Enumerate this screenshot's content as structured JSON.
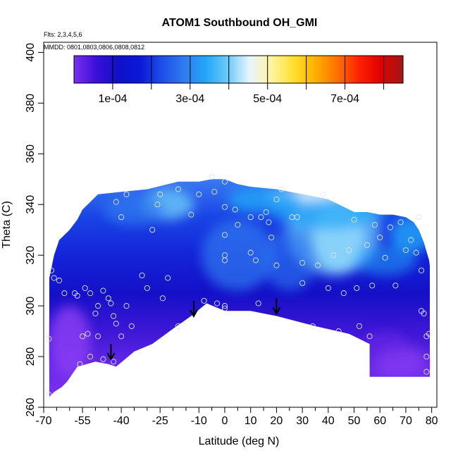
{
  "chart_data": {
    "type": "heatmap",
    "title": "ATOM1 Southbound OH_GMI",
    "note_flights": "Flts: 2,3,4,5,6",
    "note_dates": "MMDD: 0801,0803,0806,0808,0812",
    "xlabel": "Latitude (deg N)",
    "ylabel": "Theta (C)",
    "xlim": [
      -70,
      82
    ],
    "ylim": [
      260,
      404
    ],
    "x_ticks": [
      -70,
      -55,
      -40,
      -25,
      -10,
      0,
      10,
      20,
      30,
      40,
      50,
      60,
      70,
      80
    ],
    "x_minor_ticks": [
      -65,
      -60,
      -50,
      -45,
      -35,
      -30,
      -20,
      -15,
      -5,
      5,
      15,
      25,
      35,
      45,
      55,
      65,
      75
    ],
    "y_ticks": [
      260,
      280,
      300,
      320,
      340,
      360,
      380,
      400
    ],
    "colorbar": {
      "min": 0,
      "max": 0.00085,
      "tick_values": [
        0.0001,
        0.0003,
        0.0005,
        0.0007
      ],
      "tick_labels": [
        "1e-04",
        "3e-04",
        "5e-04",
        "7e-04"
      ],
      "boundaries": [
        0.0001,
        0.0002,
        0.0003,
        0.0004,
        0.0005,
        0.0006,
        0.0007,
        0.0008
      ],
      "colors": [
        "#7b2ff0",
        "#3a10d8",
        "#1010c8",
        "#0a18d8",
        "#1e4ee8",
        "#2f7af0",
        "#22a6f8",
        "#6ccaf8",
        "#e8f4ff",
        "#fff4a0",
        "#ffe030",
        "#ffb000",
        "#ff7000",
        "#ff2000",
        "#e00000",
        "#a01818"
      ]
    },
    "boundary": {
      "top": [
        [
          -68,
          310
        ],
        [
          -66,
          320
        ],
        [
          -64,
          326
        ],
        [
          -60,
          330
        ],
        [
          -57,
          334
        ],
        [
          -55,
          338
        ],
        [
          -52,
          341
        ],
        [
          -49,
          344
        ],
        [
          -40,
          345
        ],
        [
          -30,
          346
        ],
        [
          -22,
          348
        ],
        [
          -18,
          349
        ],
        [
          -10,
          349
        ],
        [
          -5,
          350
        ],
        [
          0,
          350
        ],
        [
          5,
          348
        ],
        [
          10,
          347
        ],
        [
          20,
          346
        ],
        [
          30,
          344
        ],
        [
          35,
          343
        ],
        [
          40,
          342
        ],
        [
          46,
          339
        ],
        [
          50,
          337
        ],
        [
          55,
          337
        ],
        [
          60,
          336
        ],
        [
          65,
          336
        ],
        [
          70,
          335
        ],
        [
          73,
          333
        ],
        [
          75,
          330
        ],
        [
          77,
          325
        ],
        [
          79,
          318
        ],
        [
          80,
          310
        ]
      ],
      "bottom": [
        [
          80,
          272
        ],
        [
          56,
          272
        ],
        [
          56,
          285
        ],
        [
          48,
          289
        ],
        [
          35,
          292
        ],
        [
          20,
          296
        ],
        [
          10,
          298
        ],
        [
          0,
          298
        ],
        [
          -7,
          301
        ],
        [
          -13,
          296
        ],
        [
          -20,
          291
        ],
        [
          -28,
          285
        ],
        [
          -35,
          282
        ],
        [
          -42,
          276
        ],
        [
          -45,
          277
        ],
        [
          -50,
          278
        ],
        [
          -57,
          276
        ],
        [
          -61,
          270
        ],
        [
          -63,
          268
        ],
        [
          -66,
          266
        ],
        [
          -68,
          264
        ]
      ]
    },
    "field_gradient": {
      "y_colors": [
        [
          350,
          "#3a7af2"
        ],
        [
          335,
          "#1a44e6"
        ],
        [
          320,
          "#1424d8"
        ],
        [
          305,
          "#1410c8"
        ],
        [
          290,
          "#3d16d6"
        ],
        [
          275,
          "#6a2ae8"
        ],
        [
          262,
          "#7f34f0"
        ]
      ]
    },
    "patches": [
      {
        "x": 44,
        "y": 327,
        "rx": 10,
        "ry": 14,
        "color": "#e6f2ff",
        "opacity": 0.95
      },
      {
        "x": 42,
        "y": 330,
        "rx": 18,
        "ry": 18,
        "color": "#6ccaf8",
        "opacity": 0.75
      },
      {
        "x": 40,
        "y": 338,
        "rx": 22,
        "ry": 8,
        "color": "#22a6f8",
        "opacity": 0.7
      },
      {
        "x": 30,
        "y": 344,
        "rx": 14,
        "ry": 3,
        "color": "#d8f0ff",
        "opacity": 0.9
      },
      {
        "x": 15,
        "y": 342,
        "rx": 14,
        "ry": 5,
        "color": "#22a6f8",
        "opacity": 0.8
      },
      {
        "x": -22,
        "y": 340,
        "rx": 10,
        "ry": 6,
        "color": "#6ccaf8",
        "opacity": 0.8
      },
      {
        "x": -35,
        "y": 338,
        "rx": 12,
        "ry": 6,
        "color": "#2f7af0",
        "opacity": 0.7
      },
      {
        "x": 72,
        "y": 328,
        "rx": 8,
        "ry": 7,
        "color": "#22a6f8",
        "opacity": 0.8
      },
      {
        "x": 62,
        "y": 318,
        "rx": 12,
        "ry": 6,
        "color": "#22a6f8",
        "opacity": 0.55
      },
      {
        "x": 5,
        "y": 320,
        "rx": 14,
        "ry": 14,
        "color": "#2f7af0",
        "opacity": 0.7
      },
      {
        "x": 25,
        "y": 318,
        "rx": 10,
        "ry": 12,
        "color": "#2f7af0",
        "opacity": 0.6
      },
      {
        "x": -60,
        "y": 286,
        "rx": 8,
        "ry": 14,
        "color": "#8a3cf2",
        "opacity": 0.85
      },
      {
        "x": 68,
        "y": 278,
        "rx": 10,
        "ry": 6,
        "color": "#8a3cf2",
        "opacity": 0.7
      },
      {
        "x": 62,
        "y": 285,
        "rx": 8,
        "ry": 5,
        "color": "#6a2ae8",
        "opacity": 0.6
      }
    ],
    "arrows": [
      [
        -44,
        285
      ],
      [
        -12,
        302
      ],
      [
        20,
        303
      ]
    ],
    "samples": [
      [
        -68,
        287
      ],
      [
        -68,
        265
      ],
      [
        -67,
        314
      ],
      [
        -66,
        311
      ],
      [
        -64,
        310
      ],
      [
        -62,
        305
      ],
      [
        -58,
        305
      ],
      [
        -57,
        304
      ],
      [
        -54,
        307
      ],
      [
        -52,
        305
      ],
      [
        -50,
        297
      ],
      [
        -49,
        300
      ],
      [
        -47,
        306
      ],
      [
        -45,
        303
      ],
      [
        -44,
        301
      ],
      [
        -43,
        296
      ],
      [
        -42,
        293
      ],
      [
        -40,
        288
      ],
      [
        -38,
        300
      ],
      [
        -36,
        292
      ],
      [
        -32,
        312
      ],
      [
        -30,
        307
      ],
      [
        -24,
        303
      ],
      [
        -22,
        311
      ],
      [
        -18,
        292
      ],
      [
        -8,
        302
      ],
      [
        -3,
        301
      ],
      [
        0,
        299
      ],
      [
        0,
        300
      ],
      [
        0,
        318
      ],
      [
        0,
        320
      ],
      [
        0,
        328
      ],
      [
        0,
        339
      ],
      [
        0,
        349
      ],
      [
        -4,
        345
      ],
      [
        -5,
        351
      ],
      [
        -10,
        344
      ],
      [
        -13,
        336
      ],
      [
        -18,
        346
      ],
      [
        -25,
        344
      ],
      [
        -26,
        340
      ],
      [
        -28,
        330
      ],
      [
        -38,
        344
      ],
      [
        -42,
        341
      ],
      [
        -40,
        335
      ],
      [
        -55,
        288
      ],
      [
        -56,
        277
      ],
      [
        -53,
        289
      ],
      [
        -52,
        280
      ],
      [
        -49,
        288
      ],
      [
        -47,
        279
      ],
      [
        -43,
        278
      ],
      [
        4,
        338
      ],
      [
        5,
        332
      ],
      [
        10,
        335
      ],
      [
        10,
        321
      ],
      [
        12,
        318
      ],
      [
        13,
        301
      ],
      [
        14,
        335
      ],
      [
        16,
        337
      ],
      [
        17,
        333
      ],
      [
        18,
        327
      ],
      [
        20,
        316
      ],
      [
        20,
        342
      ],
      [
        22,
        346
      ],
      [
        26,
        335
      ],
      [
        28,
        335
      ],
      [
        30,
        309
      ],
      [
        30,
        317
      ],
      [
        34,
        292
      ],
      [
        36,
        316
      ],
      [
        38,
        344
      ],
      [
        40,
        307
      ],
      [
        42,
        320
      ],
      [
        44,
        290
      ],
      [
        46,
        305
      ],
      [
        48,
        322
      ],
      [
        50,
        334
      ],
      [
        51,
        307
      ],
      [
        52,
        292
      ],
      [
        55,
        324
      ],
      [
        56,
        288
      ],
      [
        57,
        308
      ],
      [
        58,
        332
      ],
      [
        60,
        327
      ],
      [
        62,
        319
      ],
      [
        64,
        331
      ],
      [
        66,
        308
      ],
      [
        68,
        333
      ],
      [
        70,
        322
      ],
      [
        72,
        326
      ],
      [
        74,
        321
      ],
      [
        75,
        335
      ],
      [
        76,
        314
      ],
      [
        76,
        298
      ],
      [
        77,
        297
      ],
      [
        78,
        274
      ],
      [
        78,
        280
      ],
      [
        78,
        288
      ],
      [
        79,
        289
      ]
    ]
  }
}
